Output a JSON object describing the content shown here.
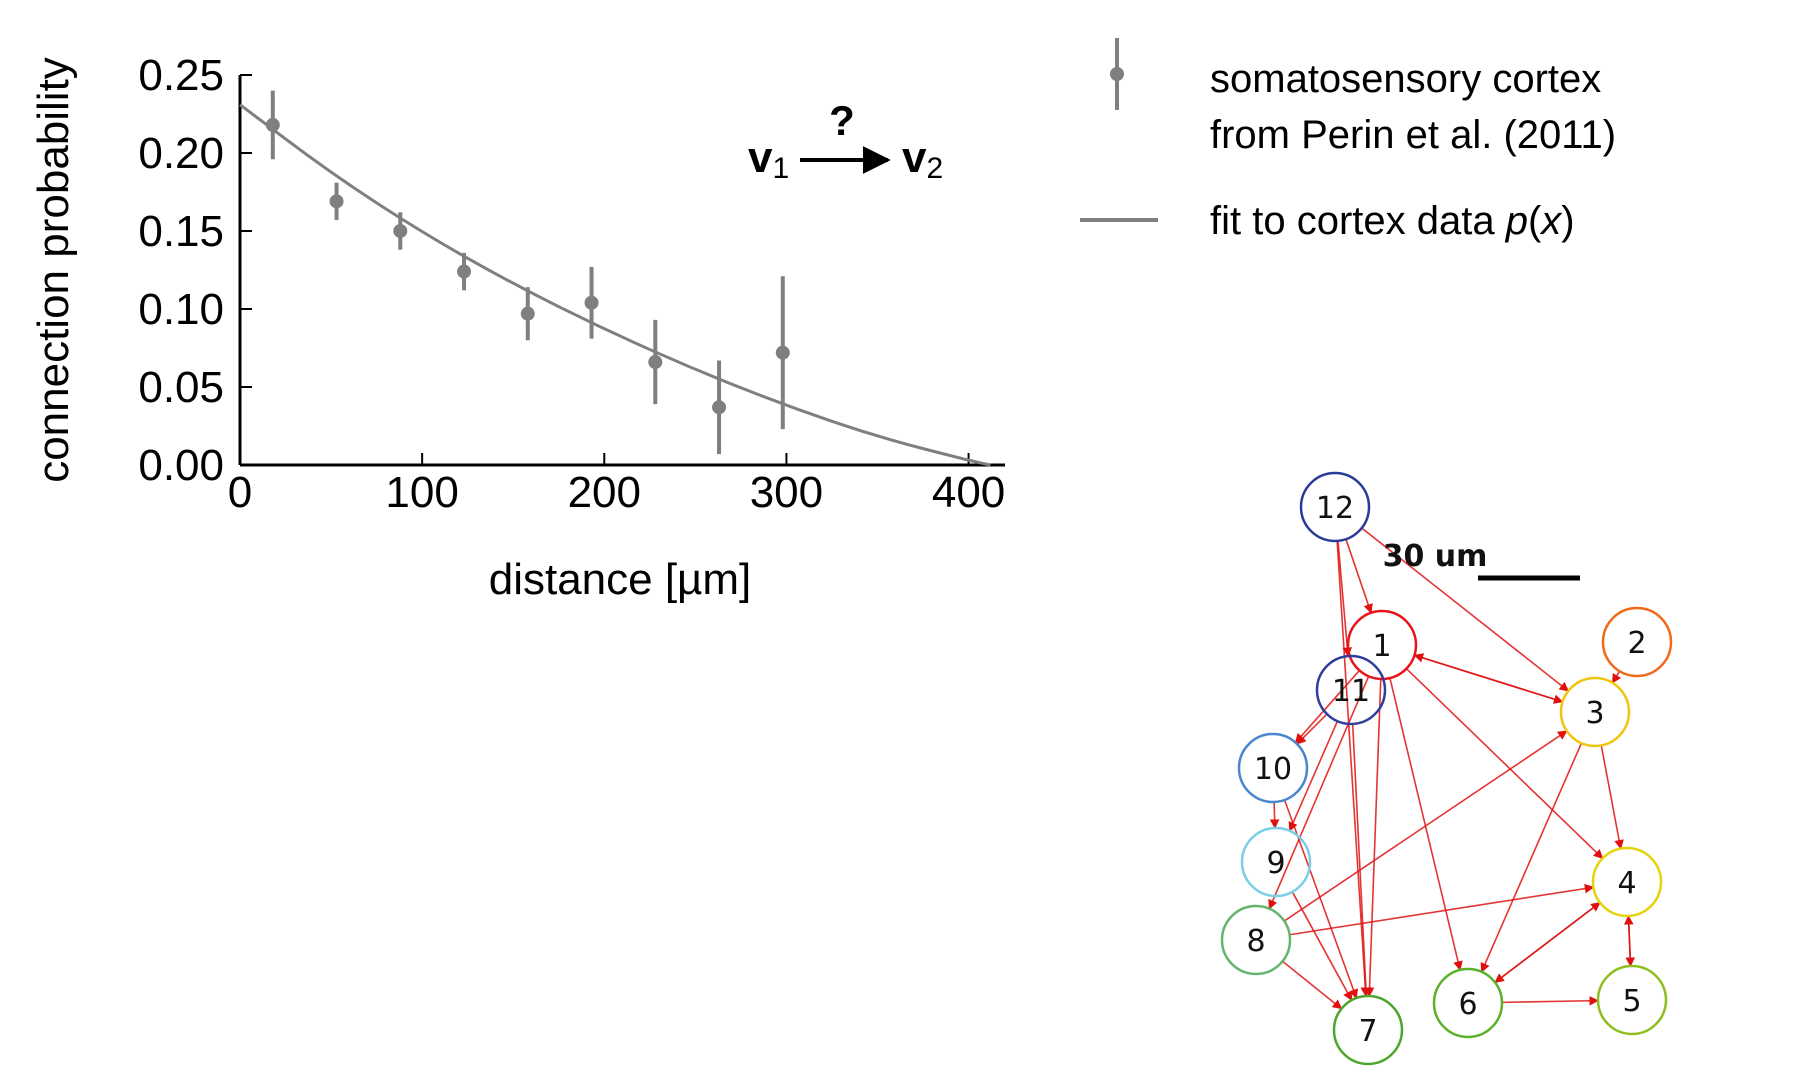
{
  "chart_data": {
    "type": "scatter",
    "xlabel": "distance [µm]",
    "ylabel": "connection probability",
    "xlim": [
      0,
      420
    ],
    "ylim": [
      0,
      0.25
    ],
    "xticks": [
      0,
      100,
      200,
      300,
      400
    ],
    "xtick_labels": [
      "0",
      "100",
      "200",
      "300",
      "400"
    ],
    "yticks": [
      0.0,
      0.05,
      0.1,
      0.15,
      0.2,
      0.25
    ],
    "ytick_labels": [
      "0.00",
      "0.05",
      "0.10",
      "0.15",
      "0.20",
      "0.25"
    ],
    "grid": false,
    "legend_position": "right",
    "series": [
      {
        "name": "somatosensory cortex from Perin et al. (2011)",
        "style": "points with error bars",
        "color": "#7f7f7f",
        "x": [
          18,
          53,
          88,
          123,
          158,
          193,
          228,
          263,
          298
        ],
        "y": [
          0.218,
          0.169,
          0.15,
          0.124,
          0.097,
          0.104,
          0.066,
          0.037,
          0.072
        ],
        "yerr_low": [
          0.022,
          0.012,
          0.012,
          0.012,
          0.017,
          0.023,
          0.027,
          0.03,
          0.049
        ],
        "yerr_high": [
          0.022,
          0.012,
          0.012,
          0.012,
          0.017,
          0.023,
          0.027,
          0.03,
          0.049
        ]
      },
      {
        "name": "fit to cortex data p(x)",
        "style": "line",
        "color": "#7f7f7f",
        "x": [
          0,
          50,
          100,
          150,
          200,
          250,
          300,
          350,
          400,
          412
        ],
        "y": [
          0.231,
          0.187,
          0.149,
          0.116,
          0.087,
          0.061,
          0.038,
          0.018,
          0.003,
          0.0
        ]
      }
    ]
  },
  "legend": {
    "data_line1": "somatosensory cortex",
    "data_line2": "from Perin et al. (2011)",
    "fit_prefix": "fit to cortex data ",
    "fit_func": "p",
    "fit_paren_open": "(",
    "fit_var": "x",
    "fit_paren_close": ")"
  },
  "connection_diagram": {
    "from_label": "v",
    "from_sub": "1",
    "to_label": "v",
    "to_sub": "2",
    "question": "?"
  },
  "network": {
    "scale_bar_label": "30 um",
    "node_colors": {
      "1": "#e8141b",
      "2": "#f06a1a",
      "3": "#f2c40c",
      "4": "#e6d20c",
      "5": "#8fbf1e",
      "6": "#5cb02a",
      "7": "#4ea52b",
      "8": "#64b46e",
      "9": "#7ccde6",
      "10": "#4a86cc",
      "11": "#2f3e9c",
      "12": "#2a3a98"
    },
    "nodes": [
      {
        "id": "1",
        "label": "1"
      },
      {
        "id": "2",
        "label": "2"
      },
      {
        "id": "3",
        "label": "3"
      },
      {
        "id": "4",
        "label": "4"
      },
      {
        "id": "5",
        "label": "5"
      },
      {
        "id": "6",
        "label": "6"
      },
      {
        "id": "7",
        "label": "7"
      },
      {
        "id": "8",
        "label": "8"
      },
      {
        "id": "9",
        "label": "9"
      },
      {
        "id": "10",
        "label": "10"
      },
      {
        "id": "11",
        "label": "11"
      },
      {
        "id": "12",
        "label": "12"
      }
    ],
    "edges": [
      [
        "12",
        "1"
      ],
      [
        "12",
        "3"
      ],
      [
        "12",
        "7"
      ],
      [
        "12",
        "11"
      ],
      [
        "1",
        "3"
      ],
      [
        "3",
        "1"
      ],
      [
        "1",
        "4"
      ],
      [
        "1",
        "6"
      ],
      [
        "1",
        "7"
      ],
      [
        "1",
        "10"
      ],
      [
        "1",
        "8"
      ],
      [
        "11",
        "7"
      ],
      [
        "11",
        "10"
      ],
      [
        "11",
        "9"
      ],
      [
        "10",
        "9"
      ],
      [
        "10",
        "7"
      ],
      [
        "9",
        "7"
      ],
      [
        "8",
        "7"
      ],
      [
        "8",
        "3"
      ],
      [
        "8",
        "4"
      ],
      [
        "3",
        "4"
      ],
      [
        "3",
        "6"
      ],
      [
        "2",
        "3"
      ],
      [
        "4",
        "5"
      ],
      [
        "5",
        "4"
      ],
      [
        "4",
        "6"
      ],
      [
        "6",
        "4"
      ],
      [
        "6",
        "5"
      ]
    ]
  }
}
